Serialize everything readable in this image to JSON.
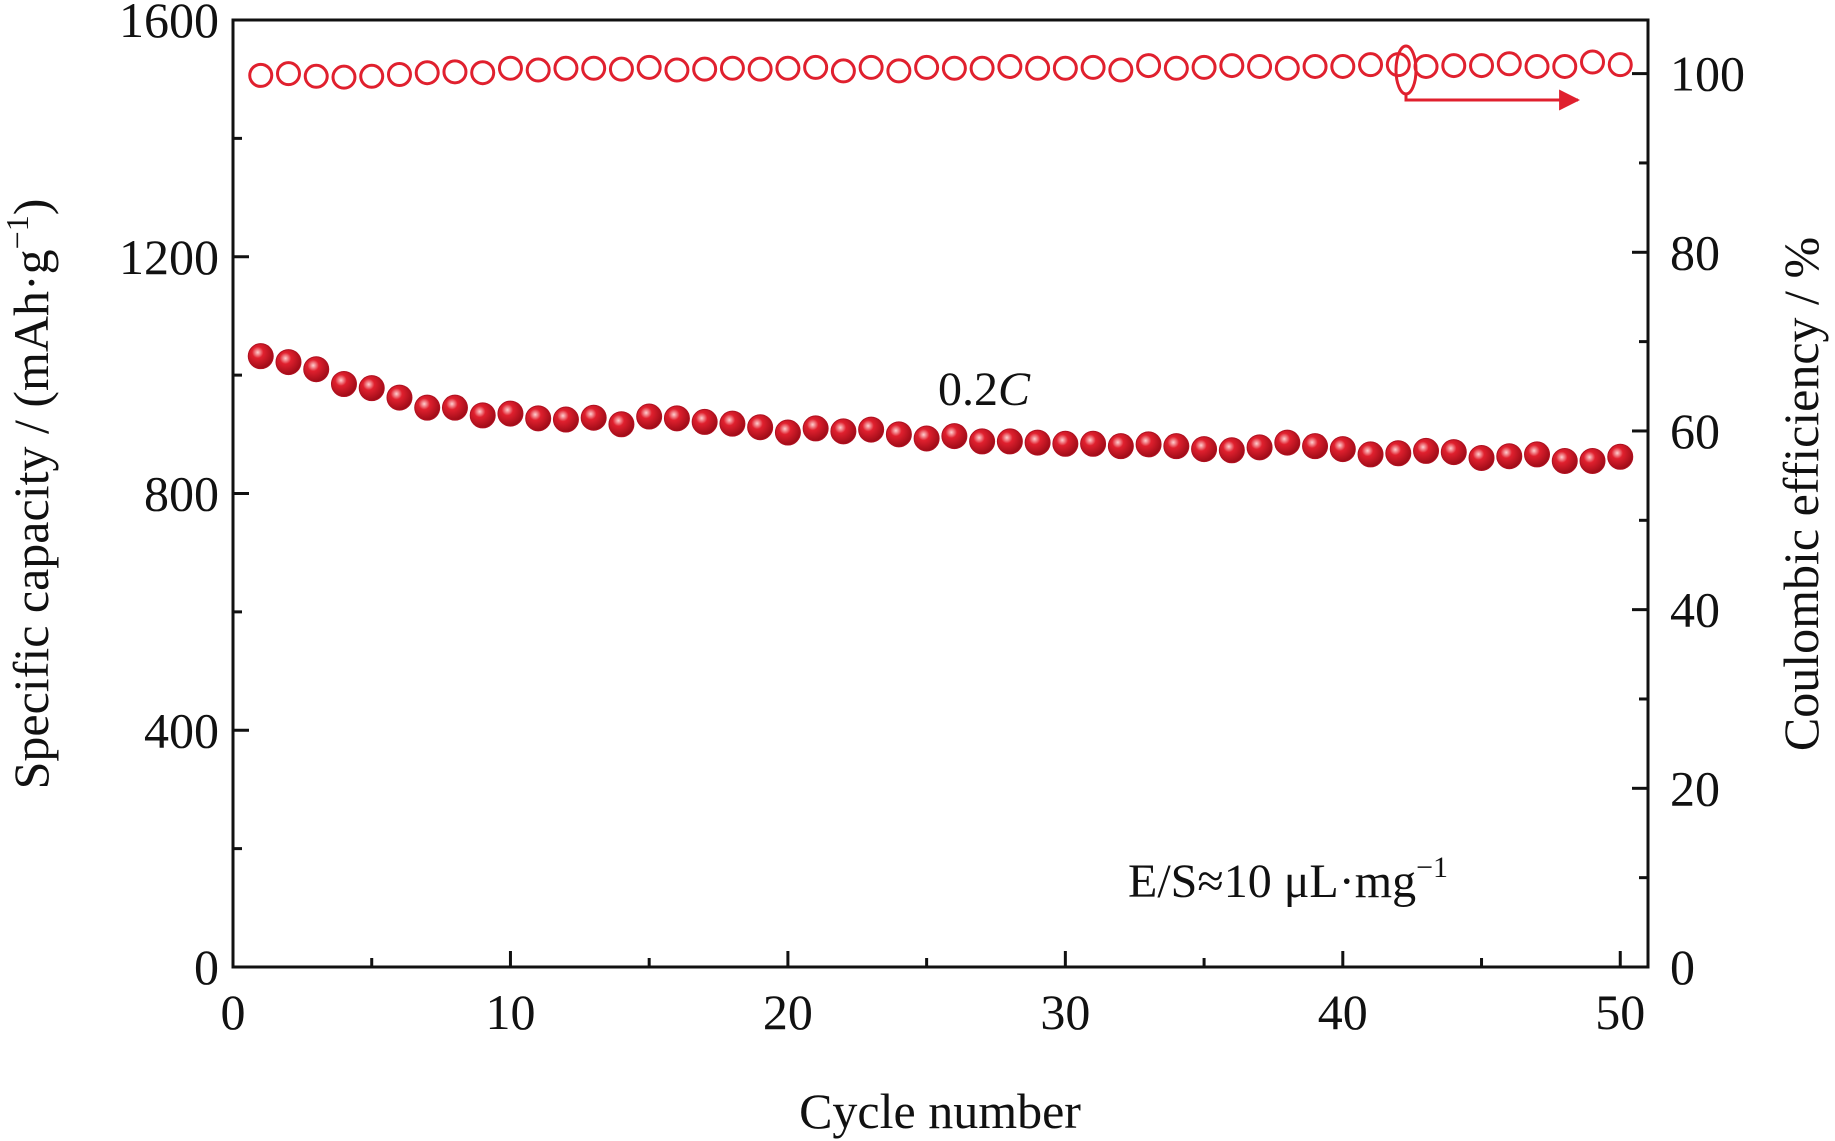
{
  "chart_data": {
    "type": "scatter",
    "xlabel": "Cycle number",
    "ylabel_left": "Specific capacity / (mAh·g",
    "ylabel_left_sup": "−1",
    "ylabel_left_close": ")",
    "ylabel_right": "Coulombic efficiency / %",
    "xlim": [
      0,
      51
    ],
    "ylim_left": [
      0,
      1600
    ],
    "ylim_right": [
      0,
      106
    ],
    "x_ticks": [
      0,
      10,
      20,
      30,
      40,
      50
    ],
    "y_left_ticks": [
      0,
      400,
      800,
      1200,
      1600
    ],
    "y_right_ticks": [
      0,
      20,
      40,
      60,
      80,
      100
    ],
    "grid": false,
    "annotations": {
      "rate": "0.2",
      "rate_unit": "C",
      "es_ratio": "E/S≈10 μL·mg",
      "es_ratio_sup": "−1"
    },
    "colors": {
      "marker": "#e0202e",
      "marker_dark": "#b01020",
      "highlight": "#ffd0d0",
      "axis": "#111111"
    },
    "series": [
      {
        "axis": "left",
        "marker": "filled",
        "x": [
          1,
          2,
          3,
          4,
          5,
          6,
          7,
          8,
          9,
          10,
          11,
          12,
          13,
          14,
          15,
          16,
          17,
          18,
          19,
          20,
          21,
          22,
          23,
          24,
          25,
          26,
          27,
          28,
          29,
          30,
          31,
          32,
          33,
          34,
          35,
          36,
          37,
          38,
          39,
          40,
          41,
          42,
          43,
          44,
          45,
          46,
          47,
          48,
          49,
          50
        ],
        "values": [
          1032,
          1022,
          1010,
          985,
          978,
          962,
          945,
          945,
          932,
          935,
          927,
          925,
          928,
          917,
          930,
          927,
          921,
          918,
          912,
          903,
          910,
          905,
          908,
          900,
          893,
          897,
          888,
          888,
          886,
          884,
          884,
          880,
          883,
          880,
          875,
          873,
          878,
          886,
          880,
          875,
          866,
          868,
          872,
          870,
          860,
          863,
          866,
          855,
          855,
          862
        ]
      },
      {
        "axis": "right",
        "marker": "hollow",
        "x": [
          1,
          2,
          3,
          4,
          5,
          6,
          7,
          8,
          9,
          10,
          11,
          12,
          13,
          14,
          15,
          16,
          17,
          18,
          19,
          20,
          21,
          22,
          23,
          24,
          25,
          26,
          27,
          28,
          29,
          30,
          31,
          32,
          33,
          34,
          35,
          36,
          37,
          38,
          39,
          40,
          41,
          42,
          43,
          44,
          45,
          46,
          47,
          48,
          49,
          50
        ],
        "values": [
          99.8,
          100.0,
          99.7,
          99.6,
          99.7,
          99.9,
          100.1,
          100.2,
          100.1,
          100.6,
          100.4,
          100.6,
          100.6,
          100.5,
          100.7,
          100.4,
          100.5,
          100.6,
          100.5,
          100.6,
          100.7,
          100.3,
          100.7,
          100.3,
          100.7,
          100.6,
          100.6,
          100.8,
          100.6,
          100.6,
          100.7,
          100.4,
          100.9,
          100.6,
          100.7,
          100.9,
          100.8,
          100.6,
          100.8,
          100.8,
          101.0,
          101.0,
          100.8,
          100.9,
          100.9,
          101.1,
          100.8,
          100.8,
          101.3,
          101.0
        ]
      }
    ]
  }
}
